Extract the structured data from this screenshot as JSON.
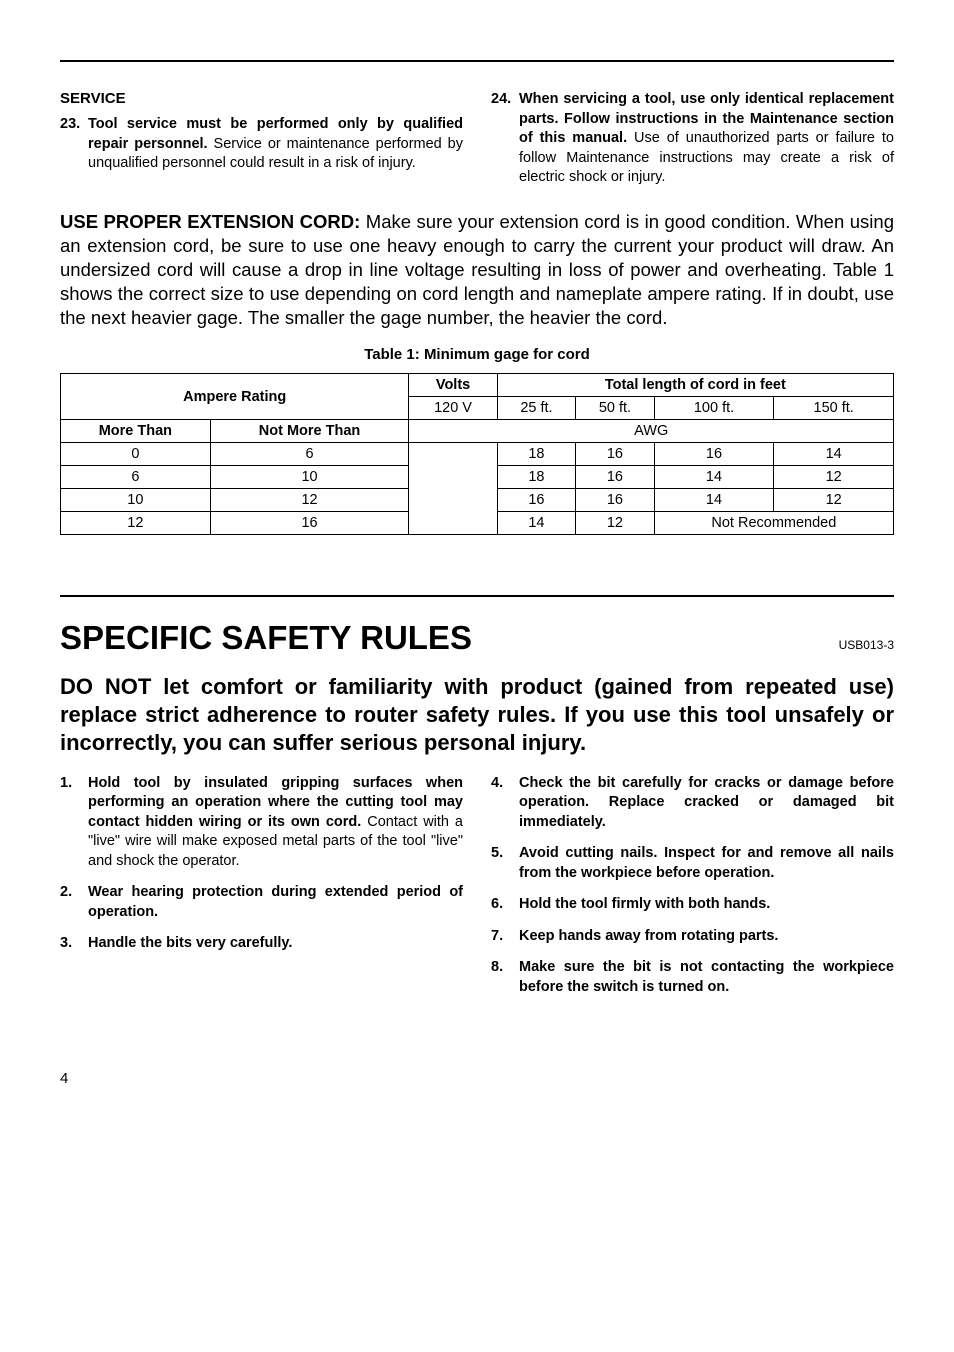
{
  "service": {
    "heading": "SERVICE",
    "items": [
      {
        "num": "23.",
        "bold": "Tool service must be performed only by qualified repair personnel.",
        "rest": " Service or maintenance performed by unqualified personnel could result in a risk of injury."
      },
      {
        "num": "24.",
        "bold": "When servicing a tool, use only identical replacement parts. Follow instructions in the Maintenance section of this manual.",
        "rest": " Use of unauthorized parts or failure to follow Maintenance instructions may create a risk of electric shock or injury."
      }
    ]
  },
  "extension": {
    "lead_bold": "USE PROPER EXTENSION CORD:",
    "lead_rest": " Make sure your extension cord is in good condition. When using an extension cord, be sure to use one heavy enough to carry the current your product will draw. An undersized cord will cause a drop in line voltage resulting in loss of power and overheating. Table 1 shows the correct size to use depending on cord length and nameplate ampere rating. If in doubt, use the next heavier gage. The smaller the gage number, the heavier the cord."
  },
  "table": {
    "caption": "Table 1: Minimum gage for cord",
    "headers": {
      "ampere_rating": "Ampere Rating",
      "volts": "Volts",
      "total_length": "Total length of cord in feet",
      "volts_val": "120 V",
      "lengths": [
        "25 ft.",
        "50 ft.",
        "100 ft.",
        "150 ft."
      ],
      "more_than": "More Than",
      "not_more_than": "Not More Than",
      "awg": "AWG"
    },
    "rows": [
      {
        "more": "0",
        "notmore": "6",
        "vals": [
          "18",
          "16",
          "16",
          "14"
        ]
      },
      {
        "more": "6",
        "notmore": "10",
        "vals": [
          "18",
          "16",
          "14",
          "12"
        ]
      },
      {
        "more": "10",
        "notmore": "12",
        "vals": [
          "16",
          "16",
          "14",
          "12"
        ]
      },
      {
        "more": "12",
        "notmore": "16",
        "vals": [
          "14",
          "12"
        ],
        "not_rec": "Not Recommended"
      }
    ]
  },
  "specific": {
    "heading": "SPECIFIC SAFETY RULES",
    "code": "USB013-3",
    "lead": "DO NOT let comfort or familiarity with product (gained from repeated use) replace strict adherence to router safety rules. If you use this tool unsafely or incorrectly, you can suffer serious personal injury.",
    "left": [
      {
        "num": "1.",
        "bold": "Hold tool by insulated gripping surfaces when performing an operation where the cutting tool may contact hidden wiring or its own cord.",
        "rest": " Contact with a \"live\" wire will make exposed metal parts of the tool \"live\" and shock the operator."
      },
      {
        "num": "2.",
        "bold": "Wear hearing protection during extended period of operation.",
        "rest": ""
      },
      {
        "num": "3.",
        "bold": "Handle the bits very carefully.",
        "rest": ""
      }
    ],
    "right": [
      {
        "num": "4.",
        "bold": "Check the bit carefully for cracks or damage before operation. Replace cracked or damaged bit immediately.",
        "rest": ""
      },
      {
        "num": "5.",
        "bold": "Avoid cutting nails. Inspect for and remove all nails from the workpiece before operation.",
        "rest": ""
      },
      {
        "num": "6.",
        "bold": "Hold the tool firmly with both hands.",
        "rest": ""
      },
      {
        "num": "7.",
        "bold": "Keep hands away from rotating parts.",
        "rest": ""
      },
      {
        "num": "8.",
        "bold": "Make sure the bit is not contacting the workpiece before the switch is turned on.",
        "rest": ""
      }
    ]
  },
  "page_number": "4"
}
